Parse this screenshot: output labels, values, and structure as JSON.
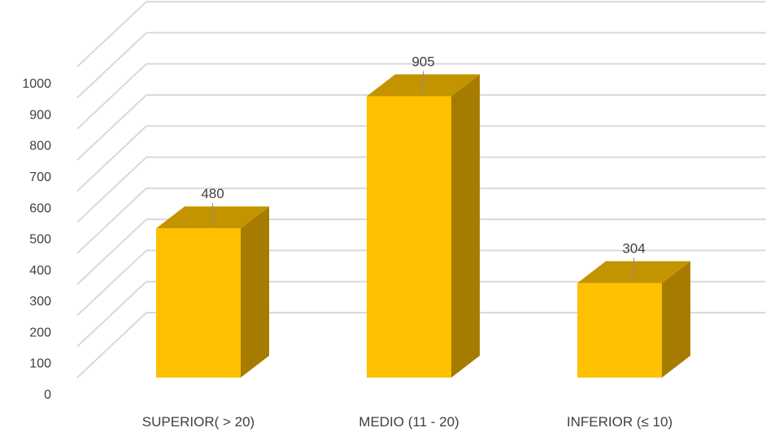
{
  "chart_data": {
    "type": "bar",
    "style": "3d-column",
    "categories": [
      "SUPERIOR( > 20)",
      "MEDIO (11 - 20)",
      "INFERIOR (≤ 10)"
    ],
    "values": [
      480,
      905,
      304
    ],
    "ylim": [
      0,
      1000
    ],
    "yticks": [
      "0",
      "100",
      "200",
      "300",
      "400",
      "500",
      "600",
      "700",
      "800",
      "900",
      "1000"
    ],
    "data_labels": [
      "480",
      "905",
      "304"
    ],
    "grid": true,
    "legend": "none",
    "colors": {
      "bar_front": "#FFC000",
      "bar_side": "#A67C00",
      "bar_top": "#C49400",
      "grid": "#D9D9D9",
      "text": "#404040"
    }
  }
}
